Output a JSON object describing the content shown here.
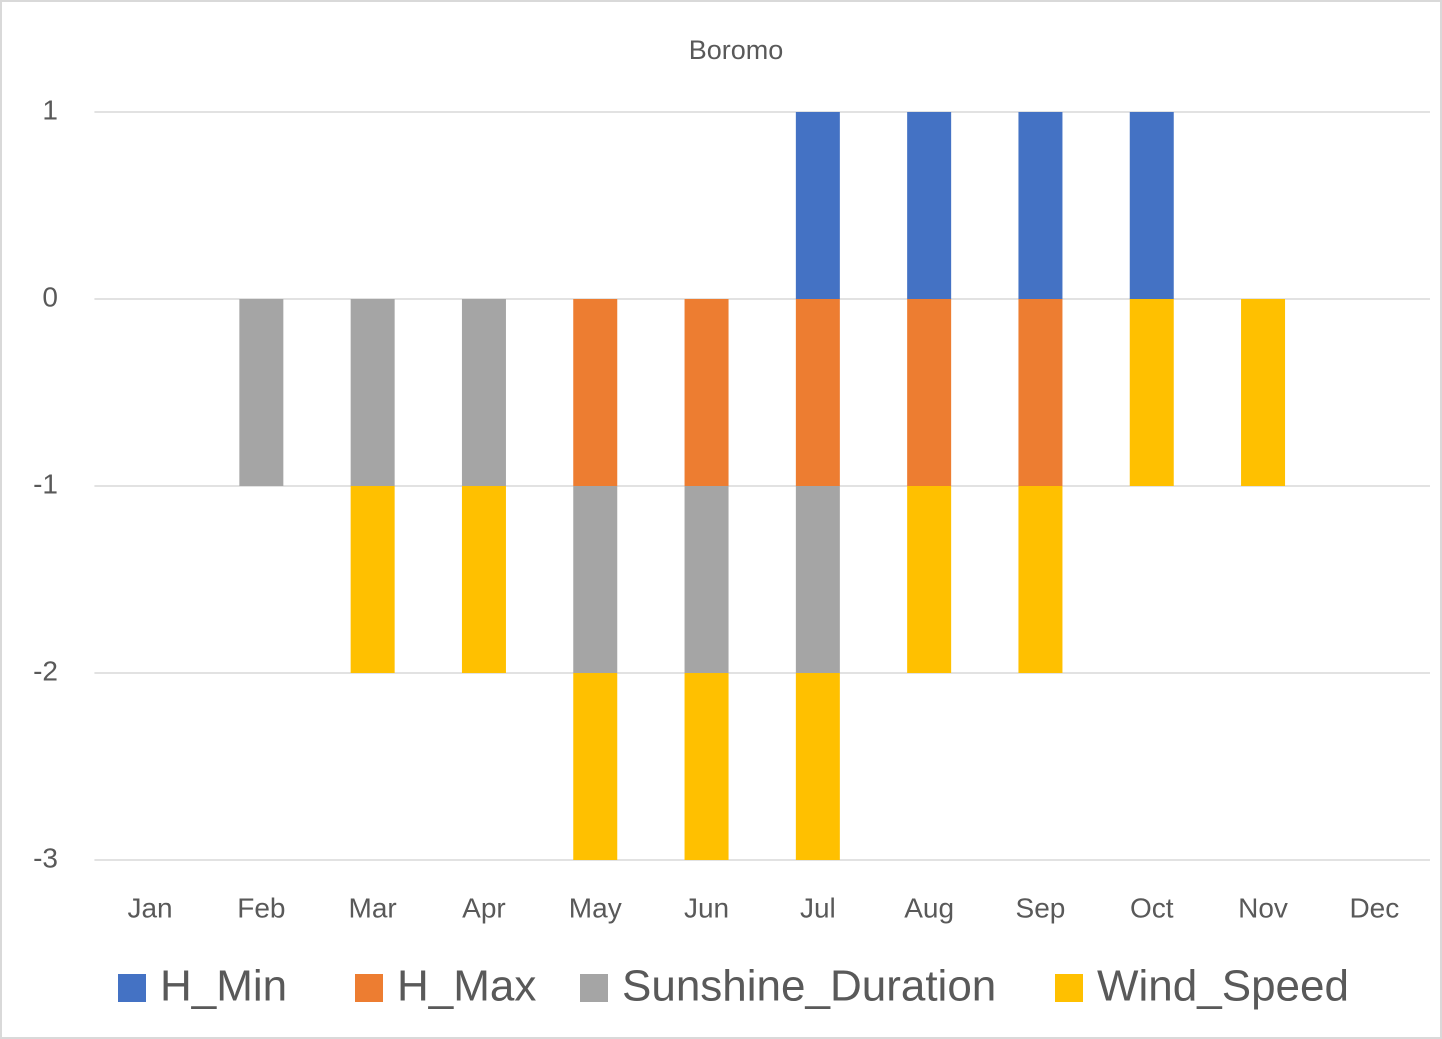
{
  "chart_data": {
    "type": "stacked-bar",
    "title": "Boromo",
    "categories": [
      "Jan",
      "Feb",
      "Mar",
      "Apr",
      "May",
      "Jun",
      "Jul",
      "Aug",
      "Sep",
      "Oct",
      "Nov",
      "Dec"
    ],
    "series": [
      {
        "name": "H_Min",
        "color": "#4472c4",
        "values": [
          0,
          0,
          0,
          0,
          0,
          0,
          1,
          1,
          1,
          1,
          0,
          0
        ]
      },
      {
        "name": "H_Max",
        "color": "#ed7d31",
        "values": [
          0,
          0,
          0,
          0,
          -1,
          -1,
          -1,
          -1,
          -1,
          0,
          0,
          0
        ]
      },
      {
        "name": "Sunshine_Duration",
        "color": "#a5a5a5",
        "values": [
          0,
          -1,
          -1,
          -1,
          -1,
          -1,
          -1,
          0,
          0,
          0,
          0,
          0
        ]
      },
      {
        "name": "Wind_Speed",
        "color": "#ffc000",
        "values": [
          0,
          0,
          -1,
          -1,
          -1,
          -1,
          -1,
          -1,
          -1,
          -1,
          -1,
          0
        ]
      }
    ],
    "ylim": [
      -3,
      1
    ],
    "yticks": [
      -3,
      -2,
      -1,
      0,
      1
    ],
    "grid": true,
    "legend": "bottom"
  }
}
